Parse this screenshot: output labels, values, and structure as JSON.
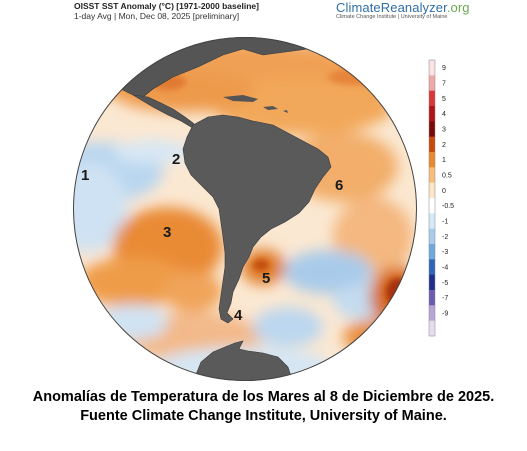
{
  "header": {
    "title": "OISST SST Anomaly (°C) [1971-2000 baseline]",
    "subtitle": "1-day Avg | Mon, Dec 08, 2025 [preliminary]"
  },
  "brand": {
    "name_main": "ClimateReanalyzer",
    "name_suffix": ".org",
    "tagline": "Climate Change Institute | University of Maine"
  },
  "map": {
    "region_labels": [
      "1",
      "2",
      "3",
      "4",
      "5",
      "6"
    ]
  },
  "colorbar": {
    "unit": "°C",
    "ticks": [
      "9",
      "7",
      "5",
      "4",
      "3",
      "2",
      "1",
      "0.5",
      "0",
      "-0.5",
      "-1",
      "-2",
      "-3",
      "-4",
      "-5",
      "-7",
      "-9"
    ],
    "colors": [
      "#fbe3e3",
      "#f0a8a8",
      "#d93636",
      "#b01515",
      "#7a0a0a",
      "#c74a0c",
      "#ea8a2c",
      "#f6be78",
      "#fde6c6",
      "#ffffff",
      "#d6e9f6",
      "#a7cdee",
      "#6ea8dd",
      "#2f64b8",
      "#1f2f8a",
      "#6a5ab0",
      "#b6a5d8",
      "#e6dcf0"
    ]
  },
  "caption": {
    "line1": "Anomalías de Temperatura de los Mares al 8 de Diciembre  de 2025.",
    "line2": "Fuente Climate Change Institute, University of Maine."
  }
}
